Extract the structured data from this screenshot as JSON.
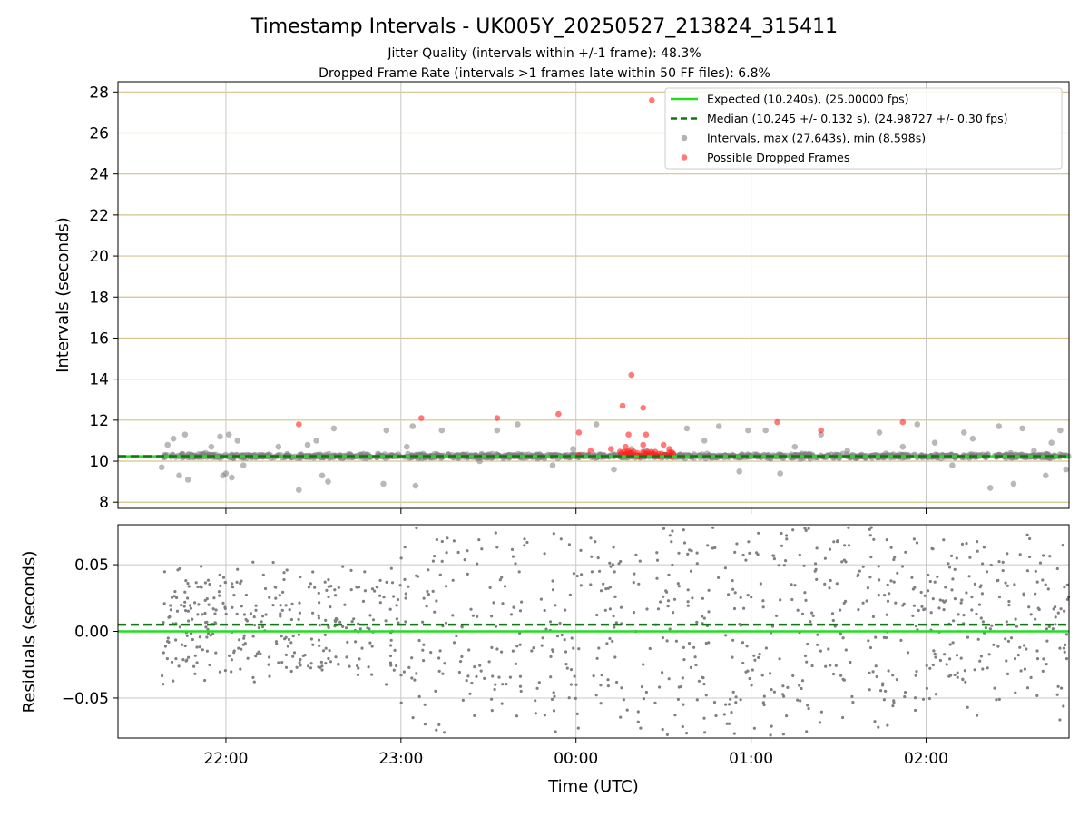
{
  "title": "Timestamp Intervals - UK005Y_20250527_213824_315411",
  "subtitle_1": "Jitter Quality (intervals within +/-1 frame): 48.3%",
  "subtitle_2": "Dropped Frame Rate (intervals >1 frames late within 50 FF files): 6.8%",
  "colors": {
    "expected": "#22dd22",
    "median": "#117711",
    "intervals": "#808080",
    "dropped": "#ff2222",
    "hgrid_top": "#d4c48a",
    "grid": "#c8c8c8"
  },
  "chart_data": [
    {
      "type": "scatter",
      "panel": "top",
      "ylabel": "Intervals (seconds)",
      "xlim": [
        "21:23",
        "02:49"
      ],
      "ylim": [
        7.7,
        28.5
      ],
      "x_ticks": [
        "22:00",
        "23:00",
        "00:00",
        "01:00",
        "02:00"
      ],
      "y_ticks": [
        8,
        10,
        12,
        14,
        16,
        18,
        20,
        22,
        24,
        26,
        28
      ],
      "x_grid": true,
      "y_grid": true,
      "legend_position": "top-right",
      "legend": [
        {
          "label": "Expected (10.240s), (25.00000 fps)",
          "kind": "solid-line"
        },
        {
          "label": "Median (10.245 +/- 0.132 s), (24.98727 +/- 0.30 fps)",
          "kind": "dashed-line"
        },
        {
          "label": "Intervals, max (27.643s), min (8.598s)",
          "kind": "gray-dot"
        },
        {
          "label": "Possible Dropped Frames",
          "kind": "red-dot"
        }
      ],
      "series": [
        {
          "name": "Expected (10.240s), (25.00000 fps)",
          "kind": "hline",
          "y": 10.24
        },
        {
          "name": "Median (10.245 +/- 0.132 s), (24.98727 +/- 0.30 fps)",
          "kind": "hline-dashed",
          "y": 10.245
        },
        {
          "name": "Intervals, max (27.643s), min (8.598s)",
          "kind": "scatter",
          "x_range": [
            "21:38",
            "02:49"
          ],
          "y_band": [
            10.05,
            10.45
          ],
          "count": 1150,
          "outliers": [
            [
              "21:38",
              9.7
            ],
            [
              "21:40",
              10.8
            ],
            [
              "21:42",
              11.1
            ],
            [
              "21:44",
              9.3
            ],
            [
              "21:46",
              11.3
            ],
            [
              "21:47",
              9.1
            ],
            [
              "21:53",
              10.4
            ],
            [
              "21:55",
              10.7
            ],
            [
              "21:58",
              11.2
            ],
            [
              "21:59",
              9.3
            ],
            [
              "22:00",
              9.4
            ],
            [
              "22:01",
              11.3
            ],
            [
              "22:02",
              9.2
            ],
            [
              "22:04",
              11.0
            ],
            [
              "22:06",
              9.8
            ],
            [
              "22:18",
              10.7
            ],
            [
              "22:25",
              8.6
            ],
            [
              "22:28",
              10.8
            ],
            [
              "22:31",
              11.0
            ],
            [
              "22:33",
              9.3
            ],
            [
              "22:35",
              9.0
            ],
            [
              "22:37",
              11.6
            ],
            [
              "22:54",
              8.9
            ],
            [
              "22:55",
              11.5
            ],
            [
              "23:02",
              10.7
            ],
            [
              "23:04",
              11.7
            ],
            [
              "23:05",
              8.8
            ],
            [
              "23:14",
              11.5
            ],
            [
              "23:27",
              10.0
            ],
            [
              "23:33",
              11.5
            ],
            [
              "23:40",
              11.8
            ],
            [
              "23:52",
              9.8
            ],
            [
              "23:57",
              10.3
            ],
            [
              "23:59",
              10.6
            ],
            [
              "00:07",
              11.8
            ],
            [
              "00:13",
              9.6
            ],
            [
              "00:19",
              10.6
            ],
            [
              "00:24",
              10.5
            ],
            [
              "00:38",
              11.6
            ],
            [
              "00:44",
              11.0
            ],
            [
              "00:49",
              11.7
            ],
            [
              "00:56",
              9.5
            ],
            [
              "00:59",
              11.5
            ],
            [
              "01:05",
              11.5
            ],
            [
              "01:10",
              9.4
            ],
            [
              "01:15",
              10.7
            ],
            [
              "01:24",
              11.3
            ],
            [
              "01:33",
              10.5
            ],
            [
              "01:44",
              11.4
            ],
            [
              "01:52",
              10.7
            ],
            [
              "01:57",
              11.8
            ],
            [
              "02:03",
              10.9
            ],
            [
              "02:09",
              9.8
            ],
            [
              "02:13",
              11.4
            ],
            [
              "02:16",
              11.1
            ],
            [
              "02:22",
              8.7
            ],
            [
              "02:25",
              11.7
            ],
            [
              "02:29",
              10.4
            ],
            [
              "02:30",
              8.9
            ],
            [
              "02:33",
              11.6
            ],
            [
              "02:37",
              10.5
            ],
            [
              "02:41",
              9.3
            ],
            [
              "02:43",
              10.9
            ],
            [
              "02:46",
              11.5
            ],
            [
              "02:48",
              9.6
            ]
          ]
        },
        {
          "name": "Possible Dropped Frames",
          "kind": "scatter",
          "points": [
            [
              "22:25",
              11.8
            ],
            [
              "23:07",
              12.1
            ],
            [
              "23:33",
              12.1
            ],
            [
              "23:54",
              12.3
            ],
            [
              "00:01",
              11.4
            ],
            [
              "00:01",
              10.3
            ],
            [
              "00:05",
              10.5
            ],
            [
              "00:12",
              10.6
            ],
            [
              "00:16",
              12.7
            ],
            [
              "00:17",
              10.7
            ],
            [
              "00:17",
              10.3
            ],
            [
              "00:18",
              10.5
            ],
            [
              "00:18",
              11.3
            ],
            [
              "00:19",
              14.2
            ],
            [
              "00:21",
              10.4
            ],
            [
              "00:23",
              12.6
            ],
            [
              "00:23",
              10.8
            ],
            [
              "00:24",
              11.3
            ],
            [
              "00:26",
              27.6
            ],
            [
              "00:30",
              10.8
            ],
            [
              "00:32",
              10.6
            ],
            [
              "01:09",
              11.9
            ],
            [
              "01:24",
              11.5
            ],
            [
              "01:52",
              11.9
            ]
          ],
          "cluster": {
            "x_range": [
              "00:15",
              "00:34"
            ],
            "y_band": [
              10.22,
              10.48
            ],
            "count": 40
          }
        }
      ]
    },
    {
      "type": "scatter",
      "panel": "bottom",
      "xlabel": "Time (UTC)",
      "ylabel": "Residuals (seconds)",
      "xlim": [
        "21:23",
        "02:49"
      ],
      "ylim": [
        -0.08,
        0.08
      ],
      "x_ticks": [
        "22:00",
        "23:00",
        "00:00",
        "01:00",
        "02:00"
      ],
      "y_ticks": [
        "0.05",
        "0.00",
        "−0.05"
      ],
      "y_tick_values": [
        0.05,
        0.0,
        -0.05
      ],
      "x_grid": true,
      "y_grid": true,
      "series": [
        {
          "kind": "hline",
          "y": 0.0
        },
        {
          "kind": "hline-dashed",
          "y": 0.005
        },
        {
          "kind": "scatter",
          "x_range": [
            "21:38",
            "02:49"
          ],
          "count": 1150,
          "y_band_by_time": [
            [
              "21:38",
              0.025
            ],
            [
              "23:00",
              0.04
            ],
            [
              "23:00",
              0.08
            ],
            [
              "01:50",
              0.08
            ],
            [
              "01:50",
              0.035
            ],
            [
              "02:49",
              0.06
            ]
          ]
        }
      ]
    }
  ]
}
